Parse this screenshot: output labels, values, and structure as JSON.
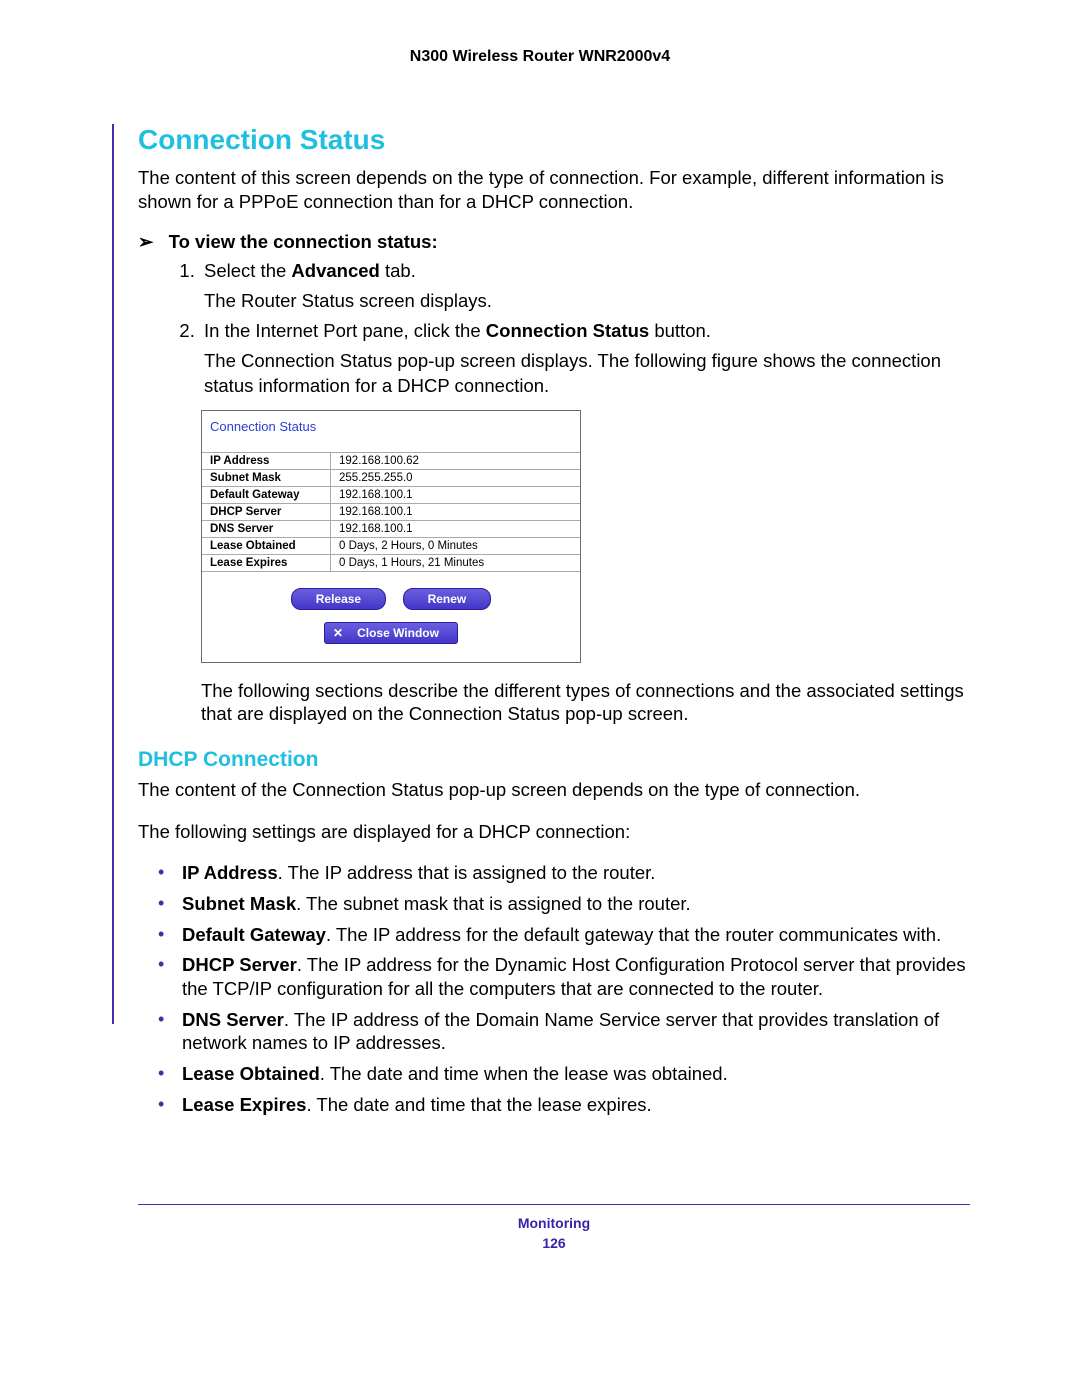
{
  "header": {
    "product": "N300 Wireless Router WNR2000v4"
  },
  "section": {
    "title": "Connection Status",
    "intro": "The content of this screen depends on the type of connection. For example, different information is shown for a PPPoE connection than for a DHCP connection.",
    "procedure_heading": "To view the connection status:",
    "steps": {
      "s1_a": "Select the ",
      "s1_b": "Advanced",
      "s1_c": " tab.",
      "s1_sub": "The Router Status screen displays.",
      "s2_a": "In the Internet Port pane, click the ",
      "s2_b": "Connection Status",
      "s2_c": " button.",
      "s2_sub": "The Connection Status pop-up screen displays. The following figure shows the connection status information for a DHCP connection."
    },
    "after_shot": "The following sections describe the different types of connections and the associated settings that are displayed on the Connection Status pop-up screen."
  },
  "shot": {
    "title": "Connection Status",
    "rows": [
      {
        "k": "IP Address",
        "v": "192.168.100.62"
      },
      {
        "k": "Subnet Mask",
        "v": "255.255.255.0"
      },
      {
        "k": "Default Gateway",
        "v": "192.168.100.1"
      },
      {
        "k": "DHCP Server",
        "v": "192.168.100.1"
      },
      {
        "k": "DNS Server",
        "v": "192.168.100.1"
      },
      {
        "k": "Lease Obtained",
        "v": "0 Days, 2 Hours, 0 Minutes"
      },
      {
        "k": "Lease Expires",
        "v": "0 Days, 1 Hours, 21 Minutes"
      }
    ],
    "buttons": {
      "release": "Release",
      "renew": "Renew",
      "close": "Close Window"
    },
    "colors": {
      "button_bg_top": "#6a5fe0",
      "button_bg_bottom": "#4336c9",
      "title_color": "#2a3fd6"
    }
  },
  "dhcp": {
    "title": "DHCP Connection",
    "p1": "The content of the Connection Status pop-up screen depends on the type of connection.",
    "p2": "The following settings are displayed for a DHCP connection:",
    "items": [
      {
        "term": "IP Address",
        "desc": ". The IP address that is assigned to the router."
      },
      {
        "term": "Subnet Mask",
        "desc": ". The subnet mask that is assigned to the router."
      },
      {
        "term": "Default Gateway",
        "desc": ". The IP address for the default gateway that the router communicates with."
      },
      {
        "term": "DHCP Server",
        "desc": ". The IP address for the Dynamic Host Configuration Protocol server that provides the TCP/IP configuration for all the computers that are connected to the router."
      },
      {
        "term": "DNS Server",
        "desc": ". The IP address of the Domain Name Service server that provides translation of network names to IP addresses."
      },
      {
        "term": "Lease Obtained",
        "desc": ". The date and time when the lease was obtained."
      },
      {
        "term": "Lease Expires",
        "desc": ". The date and time that the lease expires."
      }
    ]
  },
  "footer": {
    "section": "Monitoring",
    "page": "126"
  },
  "colors": {
    "accent_purple": "#4a2aa8",
    "heading_cyan": "#1fbfe0",
    "text": "#000000",
    "background": "#ffffff"
  }
}
